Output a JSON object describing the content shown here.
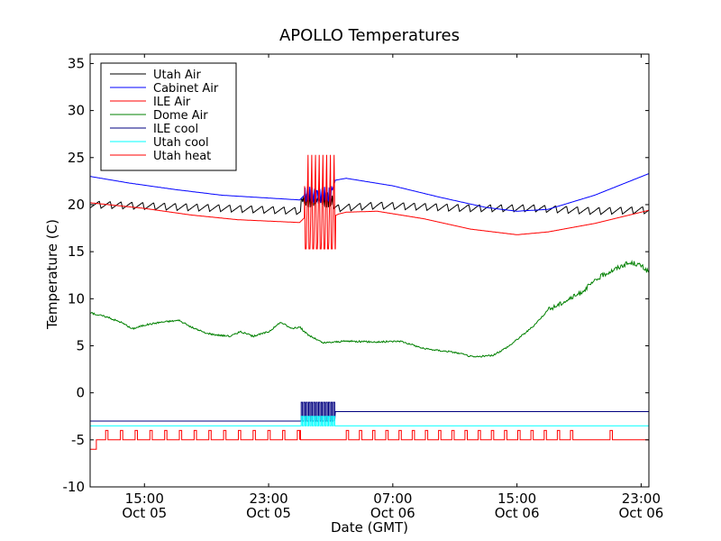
{
  "chart_data": {
    "type": "line",
    "title": "APOLLO Temperatures",
    "xlabel": "Date (GMT)",
    "ylabel": "Temperature (C)",
    "ylim": [
      -10,
      36
    ],
    "xlim_hours": [
      11.5,
      47.5
    ],
    "yticks": [
      -10,
      -5,
      0,
      5,
      10,
      15,
      20,
      25,
      30,
      35
    ],
    "ytick_labels": [
      "-10",
      "-5",
      "0",
      "5",
      "10",
      "15",
      "20",
      "25",
      "30",
      "35"
    ],
    "xticks": [
      {
        "hour": 15,
        "line1": "15:00",
        "line2": "Oct 05"
      },
      {
        "hour": 23,
        "line1": "23:00",
        "line2": "Oct 05"
      },
      {
        "hour": 31,
        "line1": "07:00",
        "line2": "Oct 06"
      },
      {
        "hour": 39,
        "line1": "15:00",
        "line2": "Oct 06"
      },
      {
        "hour": 47,
        "line1": "23:00",
        "line2": "Oct 06"
      }
    ],
    "grid": false,
    "legend_position": "top-left",
    "series": [
      {
        "name": "Utah Air",
        "color": "#000000",
        "kind": "utah_air",
        "points": [
          [
            11.5,
            20.0
          ],
          [
            20,
            19.6
          ],
          [
            25,
            19.3
          ],
          [
            30,
            19.9
          ],
          [
            36,
            19.6
          ],
          [
            40,
            19.6
          ],
          [
            44,
            19.3
          ],
          [
            47.5,
            19.4
          ]
        ]
      },
      {
        "name": "Cabinet Air",
        "color": "#0000ff",
        "kind": "cabinet_air",
        "points": [
          [
            11.5,
            23.0
          ],
          [
            14,
            22.3
          ],
          [
            17,
            21.6
          ],
          [
            20,
            21.0
          ],
          [
            23,
            20.7
          ],
          [
            25,
            20.5
          ],
          [
            25.3,
            21.0
          ],
          [
            27.0,
            21.0
          ],
          [
            27.3,
            22.6
          ],
          [
            28,
            22.8
          ],
          [
            31,
            22.0
          ],
          [
            34,
            20.8
          ],
          [
            37,
            19.7
          ],
          [
            39,
            19.3
          ],
          [
            41,
            19.5
          ],
          [
            44,
            21.0
          ],
          [
            47.5,
            23.3
          ]
        ]
      },
      {
        "name": "ILE Air",
        "color": "#ff0000",
        "kind": "ile_air",
        "points": [
          [
            11.5,
            20.2
          ],
          [
            15,
            19.6
          ],
          [
            18,
            18.9
          ],
          [
            21,
            18.4
          ],
          [
            25,
            18.1
          ],
          [
            25.3,
            18.6
          ],
          [
            27.0,
            18.6
          ],
          [
            27.5,
            19.0
          ],
          [
            28,
            19.2
          ],
          [
            30,
            19.3
          ],
          [
            33,
            18.5
          ],
          [
            36,
            17.4
          ],
          [
            39,
            16.8
          ],
          [
            41,
            17.1
          ],
          [
            44,
            18.0
          ],
          [
            47.5,
            19.4
          ]
        ]
      },
      {
        "name": "Dome Air",
        "color": "#008000",
        "kind": "dome_air",
        "points": [
          [
            11.5,
            8.5
          ],
          [
            12.5,
            8.1
          ],
          [
            13.5,
            7.5
          ],
          [
            14.2,
            6.8
          ],
          [
            15,
            7.2
          ],
          [
            16,
            7.5
          ],
          [
            17.2,
            7.7
          ],
          [
            18,
            7.0
          ],
          [
            19,
            6.3
          ],
          [
            20.5,
            6.0
          ],
          [
            21.2,
            6.5
          ],
          [
            22,
            6.0
          ],
          [
            23,
            6.5
          ],
          [
            23.8,
            7.5
          ],
          [
            24.5,
            6.8
          ],
          [
            25,
            7.0
          ],
          [
            25.5,
            6.2
          ],
          [
            26.5,
            5.3
          ],
          [
            28,
            5.5
          ],
          [
            30,
            5.4
          ],
          [
            31.5,
            5.5
          ],
          [
            33,
            4.7
          ],
          [
            35,
            4.3
          ],
          [
            36.2,
            3.8
          ],
          [
            37.5,
            4.0
          ],
          [
            38.5,
            5.0
          ],
          [
            40,
            7.0
          ],
          [
            41,
            8.8
          ],
          [
            43,
            10.5
          ],
          [
            44.5,
            12.5
          ],
          [
            46,
            13.7
          ],
          [
            46.5,
            13.8
          ],
          [
            47,
            13.5
          ],
          [
            47.5,
            12.8
          ]
        ]
      },
      {
        "name": "ILE cool",
        "color": "#000080",
        "kind": "ile_cool",
        "points": [
          [
            11.5,
            -3.0
          ],
          [
            25.0,
            -3.0
          ],
          [
            25.3,
            -1.0
          ],
          [
            27.2,
            -1.0
          ],
          [
            27.5,
            -2.0
          ],
          [
            47.5,
            -2.0
          ]
        ]
      },
      {
        "name": "Utah cool",
        "color": "#00ffff",
        "kind": "utah_cool",
        "points": [
          [
            11.5,
            -3.5
          ],
          [
            25.0,
            -3.5
          ],
          [
            25.3,
            -2.5
          ],
          [
            27.2,
            -2.5
          ],
          [
            27.5,
            -3.5
          ],
          [
            47.5,
            -3.5
          ]
        ]
      },
      {
        "name": "Utah heat",
        "color": "#ff0000",
        "kind": "utah_heat",
        "points": [
          [
            11.5,
            -6.0
          ],
          [
            11.9,
            -6.0
          ],
          [
            11.9,
            -5.0
          ],
          [
            47.5,
            -5.0
          ]
        ]
      }
    ]
  }
}
